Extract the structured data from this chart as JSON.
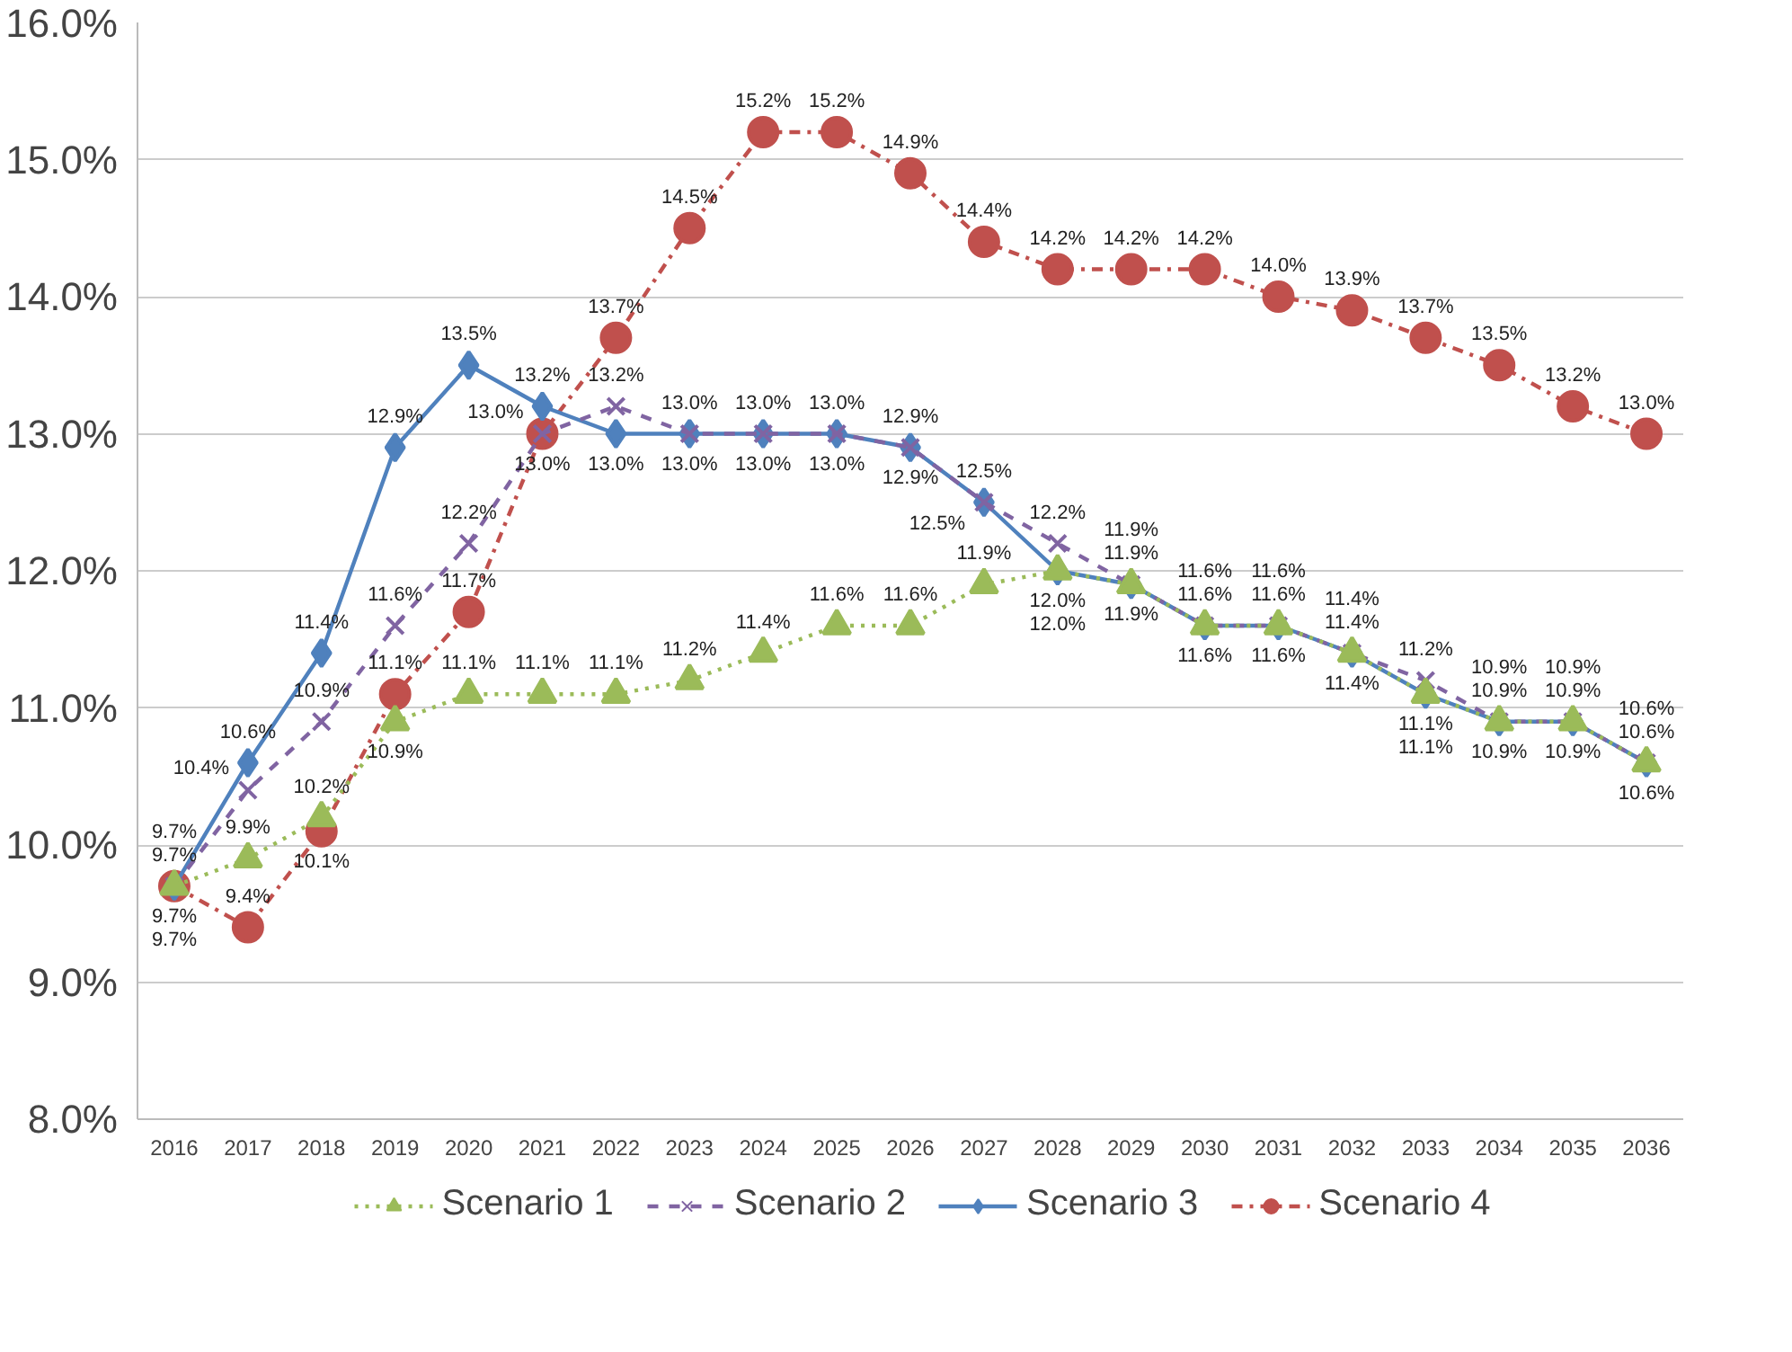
{
  "chart_data": {
    "type": "line",
    "categories": [
      "2016",
      "2017",
      "2018",
      "2019",
      "2020",
      "2021",
      "2022",
      "2023",
      "2024",
      "2025",
      "2026",
      "2027",
      "2028",
      "2029",
      "2030",
      "2031",
      "2032",
      "2033",
      "2034",
      "2035",
      "2036"
    ],
    "series": [
      {
        "name": "Scenario 1",
        "color": "#9bbb59",
        "marker": "triangle",
        "line_style": "dotted",
        "values": [
          9.7,
          9.9,
          10.2,
          10.9,
          11.1,
          11.1,
          11.1,
          11.2,
          11.4,
          11.6,
          11.6,
          11.9,
          12.0,
          11.9,
          11.6,
          11.6,
          11.4,
          11.1,
          10.9,
          10.9,
          10.6
        ],
        "value_labels": [
          "9.7%",
          "9.9%",
          "10.2%",
          "10.9%",
          "11.1%",
          "11.1%",
          "11.1%",
          "11.2%",
          "11.4%",
          "11.6%",
          "11.6%",
          "11.9%",
          "12.0%",
          "11.9%",
          "11.6%",
          "11.6%",
          "11.4%",
          "11.1%",
          "10.9%",
          "10.9%",
          "10.6%"
        ]
      },
      {
        "name": "Scenario 2",
        "color": "#8064a2",
        "marker": "cross",
        "line_style": "dashed",
        "values": [
          9.7,
          10.4,
          10.9,
          11.6,
          12.2,
          13.0,
          13.2,
          13.0,
          13.0,
          13.0,
          12.9,
          12.5,
          12.2,
          11.9,
          11.6,
          11.6,
          11.4,
          11.2,
          10.9,
          10.9,
          10.6
        ],
        "value_labels": [
          "9.7%",
          "10.4%",
          "10.9%",
          "11.6%",
          "12.2%",
          "13.0%",
          "13.2%",
          "13.0%",
          "13.0%",
          "13.0%",
          "12.9%",
          "12.5%",
          "12.2%",
          "11.9%",
          "11.6%",
          "11.6%",
          "11.4%",
          "11.2%",
          "10.9%",
          "10.9%",
          "10.6%"
        ]
      },
      {
        "name": "Scenario 3",
        "color": "#4f81bd",
        "marker": "diamond",
        "line_style": "solid",
        "values": [
          9.7,
          10.6,
          11.4,
          12.9,
          13.5,
          13.2,
          13.0,
          13.0,
          13.0,
          13.0,
          12.9,
          12.5,
          12.0,
          11.9,
          11.6,
          11.6,
          11.4,
          11.1,
          10.9,
          10.9,
          10.6
        ],
        "value_labels": [
          "9.7%",
          "10.6%",
          "11.4%",
          "12.9%",
          "13.5%",
          "13.2%",
          "13.0%",
          "13.0%",
          "13.0%",
          "13.0%",
          "12.9%",
          "12.5%",
          "12.0%",
          "11.9%",
          "11.6%",
          "11.6%",
          "11.4%",
          "11.1%",
          "10.9%",
          "10.9%",
          "10.6%"
        ]
      },
      {
        "name": "Scenario 4",
        "color": "#c0504d",
        "marker": "circle",
        "line_style": "dashdot",
        "values": [
          9.7,
          9.4,
          10.1,
          11.1,
          11.7,
          13.0,
          13.7,
          14.5,
          15.2,
          15.2,
          14.9,
          14.4,
          14.2,
          14.2,
          14.2,
          14.0,
          13.9,
          13.7,
          13.5,
          13.2,
          13.0
        ],
        "value_labels": [
          "9.7%",
          "9.4%",
          "10.1%",
          "11.1%",
          "11.7%",
          "13.0%",
          "13.7%",
          "14.5%",
          "15.2%",
          "15.2%",
          "14.9%",
          "14.4%",
          "14.2%",
          "14.2%",
          "14.2%",
          "14.0%",
          "13.9%",
          "13.7%",
          "13.5%",
          "13.2%",
          "13.0%"
        ]
      }
    ],
    "ylim": [
      8,
      16
    ],
    "yticks": [
      {
        "value": 8,
        "label": "8.0%"
      },
      {
        "value": 9,
        "label": "9.0%"
      },
      {
        "value": 10,
        "label": "10.0%"
      },
      {
        "value": 11,
        "label": "11.0%"
      },
      {
        "value": 12,
        "label": "12.0%"
      },
      {
        "value": 13,
        "label": "13.0%"
      },
      {
        "value": 14,
        "label": "14.0%"
      },
      {
        "value": 15,
        "label": "15.0%"
      },
      {
        "value": 16,
        "label": "16.0%"
      }
    ],
    "grid": "y",
    "legend": "bottom"
  }
}
